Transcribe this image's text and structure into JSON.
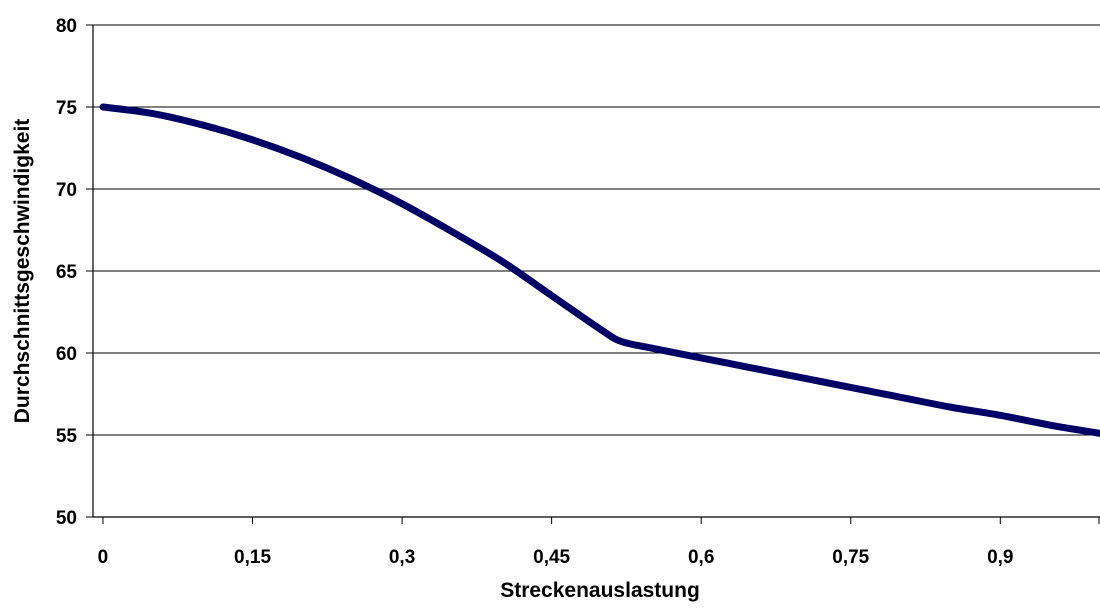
{
  "chart_data": {
    "type": "line",
    "title": "",
    "xlabel": "Streckenauslastung",
    "ylabel": "Durchschnittsgeschwindigkeit",
    "xlim": [
      -0.01,
      1.0
    ],
    "ylim": [
      50,
      80
    ],
    "x_ticks": [
      0,
      0.15,
      0.3,
      0.45,
      0.6,
      0.75,
      0.9
    ],
    "x_tick_labels": [
      "0",
      "0,15",
      "0,3",
      "0,45",
      "0,6",
      "0,75",
      "0,9"
    ],
    "y_ticks": [
      50,
      55,
      60,
      65,
      70,
      75,
      80
    ],
    "y_tick_labels": [
      "50",
      "55",
      "60",
      "65",
      "70",
      "75",
      "80"
    ],
    "grid": "horizontal",
    "line_color": "#000066",
    "series": [
      {
        "x": [
          0,
          0.05,
          0.1,
          0.15,
          0.2,
          0.25,
          0.3,
          0.35,
          0.4,
          0.45,
          0.5,
          0.52,
          0.55,
          0.6,
          0.65,
          0.7,
          0.75,
          0.8,
          0.85,
          0.9,
          0.95,
          1.0
        ],
        "values": [
          75,
          74.6,
          73.9,
          73,
          71.9,
          70.6,
          69.1,
          67.4,
          65.6,
          63.5,
          61.4,
          60.7,
          60.3,
          59.7,
          59.1,
          58.5,
          57.9,
          57.3,
          56.7,
          56.2,
          55.6,
          55.1
        ]
      }
    ]
  }
}
